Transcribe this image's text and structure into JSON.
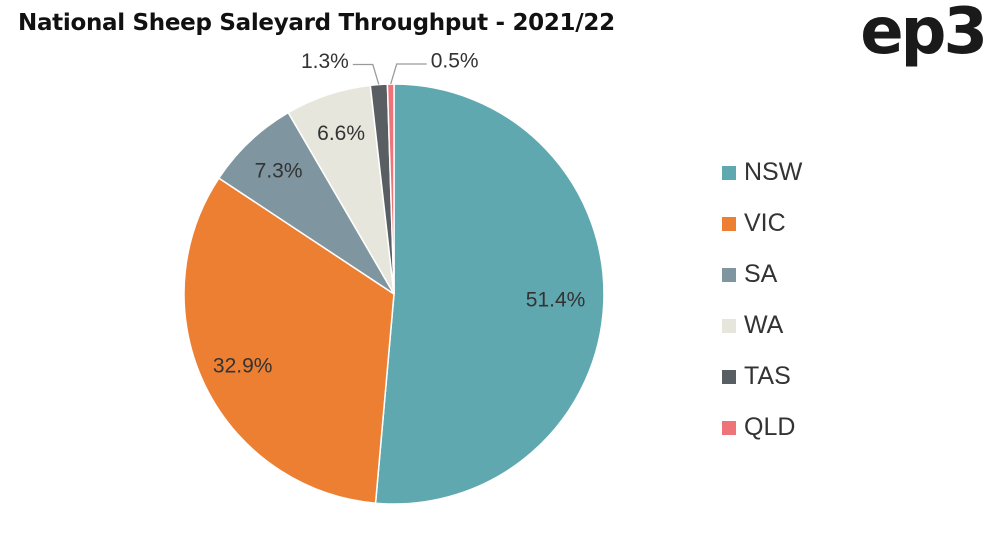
{
  "title": "National Sheep Saleyard Throughput - 2021/22",
  "logo_text": "ep3",
  "chart_data": {
    "type": "pie",
    "title": "National Sheep Saleyard Throughput - 2021/22",
    "legend_position": "right",
    "slices": [
      {
        "label": "NSW",
        "value": 51.4,
        "display": "51.4%",
        "color": "#5fa8b0"
      },
      {
        "label": "VIC",
        "value": 32.9,
        "display": "32.9%",
        "color": "#ed7f33"
      },
      {
        "label": "SA",
        "value": 7.3,
        "display": "7.3%",
        "color": "#7f95a0"
      },
      {
        "label": "WA",
        "value": 6.6,
        "display": "6.6%",
        "color": "#e7e6dc"
      },
      {
        "label": "TAS",
        "value": 1.3,
        "display": "1.3%",
        "color": "#595e62"
      },
      {
        "label": "QLD",
        "value": 0.5,
        "display": "0.5%",
        "color": "#ef7479"
      }
    ]
  }
}
